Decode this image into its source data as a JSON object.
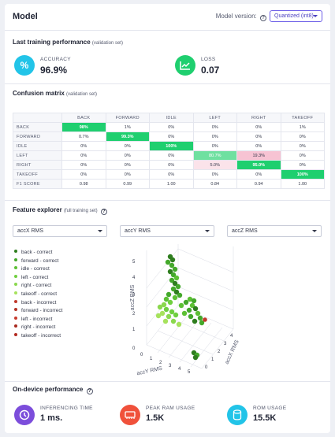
{
  "header": {
    "title": "Model",
    "model_version_label": "Model version:",
    "model_version_value": "Quantized (int8)"
  },
  "last_training": {
    "title": "Last training performance",
    "subtitle": "(validation set)",
    "accuracy": {
      "label": "ACCURACY",
      "value": "96.9%",
      "icon": "percent-icon",
      "color": "#22c4e8"
    },
    "loss": {
      "label": "LOSS",
      "value": "0.07",
      "icon": "trend-chart-icon",
      "color": "#1fcf6f"
    }
  },
  "confusion": {
    "title": "Confusion matrix",
    "subtitle": "(validation set)",
    "columns": [
      "BACK",
      "FORWARD",
      "IDLE",
      "LEFT",
      "RIGHT",
      "TAKEOFF"
    ],
    "rows": [
      {
        "label": "BACK",
        "cells": [
          "98%",
          "1%",
          "0%",
          "0%",
          "0%",
          "1%"
        ]
      },
      {
        "label": "FORWARD",
        "cells": [
          "0.7%",
          "99.3%",
          "0%",
          "0%",
          "0%",
          "0%"
        ]
      },
      {
        "label": "IDLE",
        "cells": [
          "0%",
          "0%",
          "100%",
          "0%",
          "0%",
          "0%"
        ]
      },
      {
        "label": "LEFT",
        "cells": [
          "0%",
          "0%",
          "0%",
          "80.7%",
          "19.3%",
          "0%"
        ]
      },
      {
        "label": "RIGHT",
        "cells": [
          "0%",
          "0%",
          "0%",
          "5.0%",
          "95.0%",
          "0%"
        ]
      },
      {
        "label": "TAKEOFF",
        "cells": [
          "0%",
          "0%",
          "0%",
          "0%",
          "0%",
          "100%"
        ]
      },
      {
        "label": "F1 SCORE",
        "cells": [
          "0.98",
          "0.99",
          "1.00",
          "0.84",
          "0.94",
          "1.00"
        ]
      }
    ]
  },
  "feature_explorer": {
    "title": "Feature explorer",
    "subtitle": "(full training set)",
    "selects": [
      "accX RMS",
      "accY RMS",
      "accZ RMS"
    ],
    "legend": [
      {
        "label": "back - correct",
        "color": "#2e7d1e"
      },
      {
        "label": "forward - correct",
        "color": "#43a82a"
      },
      {
        "label": "idle - correct",
        "color": "#5cc034"
      },
      {
        "label": "left - correct",
        "color": "#6fcf3f"
      },
      {
        "label": "right - correct",
        "color": "#8ad84d"
      },
      {
        "label": "takeoff - correct",
        "color": "#a6e25c"
      },
      {
        "label": "back - incorrect",
        "color": "#c0392b"
      },
      {
        "label": "forward - incorrect",
        "color": "#b33225"
      },
      {
        "label": "left - incorrect",
        "color": "#c73a2d"
      },
      {
        "label": "right - incorrect",
        "color": "#a82a1f"
      },
      {
        "label": "takeoff - incorrect",
        "color": "#b32a20"
      }
    ],
    "axes": {
      "z": "accZ RMS",
      "y": "accY RMS",
      "x": "accX RMS"
    },
    "z_ticks": [
      "5",
      "4",
      "3",
      "2",
      "1",
      "0"
    ],
    "y_ticks": [
      "0",
      "1",
      "2",
      "3",
      "4",
      "5"
    ],
    "x_ticks": [
      "0",
      "1",
      "2",
      "3",
      "4"
    ]
  },
  "on_device": {
    "title": "On-device performance",
    "inferencing": {
      "label": "INFERENCING TIME",
      "value": "1 ms.",
      "icon": "clock-icon",
      "color": "#7c4ddb"
    },
    "peak_ram": {
      "label": "PEAK RAM USAGE",
      "value": "1.5K",
      "icon": "ram-chip-icon",
      "color": "#f0513b"
    },
    "rom": {
      "label": "ROM USAGE",
      "value": "15.5K",
      "icon": "storage-icon",
      "color": "#22c4e8"
    }
  }
}
